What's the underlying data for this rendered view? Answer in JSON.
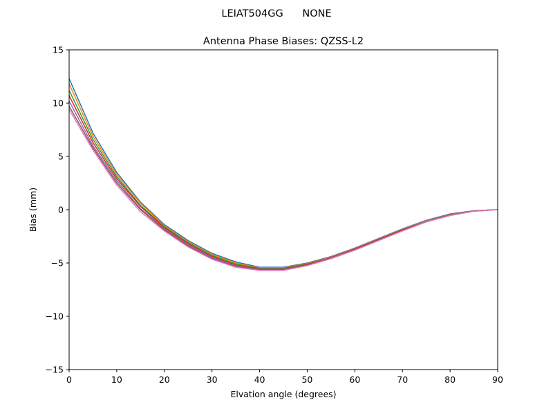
{
  "figure": {
    "suptitle": "LEIAT504GG      NONE"
  },
  "colors": {
    "palette": [
      "#1f77b4",
      "#ff7f0e",
      "#2ca02c",
      "#d62728",
      "#9467bd",
      "#8c564b",
      "#e377c2",
      "#7f7f7f",
      "#bcbd22",
      "#17becf"
    ]
  },
  "chart_data": {
    "type": "line",
    "title": "Antenna Phase Biases: QZSS-L2",
    "xlabel": "Elvation angle (degrees)",
    "ylabel": "Bias (mm)",
    "xlim": [
      0,
      90
    ],
    "ylim": [
      -15,
      15
    ],
    "xticks": [
      0,
      10,
      20,
      30,
      40,
      50,
      60,
      70,
      80,
      90
    ],
    "yticks": [
      -15,
      -10,
      -5,
      0,
      5,
      10,
      15
    ],
    "xtick_labels": [
      "0",
      "10",
      "20",
      "30",
      "40",
      "50",
      "60",
      "70",
      "80",
      "90"
    ],
    "ytick_labels": [
      "−15",
      "−10",
      "−5",
      "0",
      "5",
      "10",
      "15"
    ],
    "grid": false,
    "x": [
      0,
      5,
      10,
      15,
      20,
      25,
      30,
      35,
      40,
      45,
      50,
      55,
      60,
      65,
      70,
      75,
      80,
      85,
      90
    ],
    "series": [
      {
        "values": [
          12.3,
          7.2,
          3.5,
          0.7,
          -1.4,
          -2.9,
          -4.1,
          -4.9,
          -5.4,
          -5.4,
          -5.0,
          -4.4,
          -3.6,
          -2.7,
          -1.8,
          -1.0,
          -0.4,
          -0.1,
          0.0
        ]
      },
      {
        "values": [
          11.8,
          6.9,
          3.3,
          0.6,
          -1.5,
          -3.0,
          -4.2,
          -5.0,
          -5.45,
          -5.45,
          -5.05,
          -4.45,
          -3.65,
          -2.75,
          -1.85,
          -1.05,
          -0.45,
          -0.1,
          0.0
        ]
      },
      {
        "values": [
          11.2,
          6.6,
          3.1,
          0.4,
          -1.6,
          -3.1,
          -4.3,
          -5.1,
          -5.5,
          -5.5,
          -5.1,
          -4.5,
          -3.7,
          -2.8,
          -1.9,
          -1.1,
          -0.5,
          -0.1,
          0.0
        ]
      },
      {
        "values": [
          10.7,
          6.3,
          2.9,
          0.3,
          -1.7,
          -3.2,
          -4.4,
          -5.2,
          -5.55,
          -5.55,
          -5.15,
          -4.5,
          -3.7,
          -2.8,
          -1.9,
          -1.1,
          -0.5,
          -0.1,
          0.0
        ]
      },
      {
        "values": [
          10.2,
          6.0,
          2.7,
          0.1,
          -1.8,
          -3.3,
          -4.5,
          -5.3,
          -5.6,
          -5.6,
          -5.2,
          -4.55,
          -3.75,
          -2.85,
          -1.95,
          -1.1,
          -0.5,
          -0.1,
          0.0
        ]
      },
      {
        "values": [
          9.7,
          5.8,
          2.5,
          0.0,
          -1.9,
          -3.4,
          -4.6,
          -5.35,
          -5.65,
          -5.65,
          -5.2,
          -4.6,
          -3.75,
          -2.85,
          -1.95,
          -1.15,
          -0.5,
          -0.15,
          0.0
        ]
      },
      {
        "values": [
          9.4,
          5.6,
          2.3,
          -0.2,
          -2.0,
          -3.5,
          -4.65,
          -5.4,
          -5.7,
          -5.7,
          -5.25,
          -4.6,
          -3.8,
          -2.9,
          -2.0,
          -1.15,
          -0.55,
          -0.15,
          0.0
        ]
      }
    ]
  }
}
